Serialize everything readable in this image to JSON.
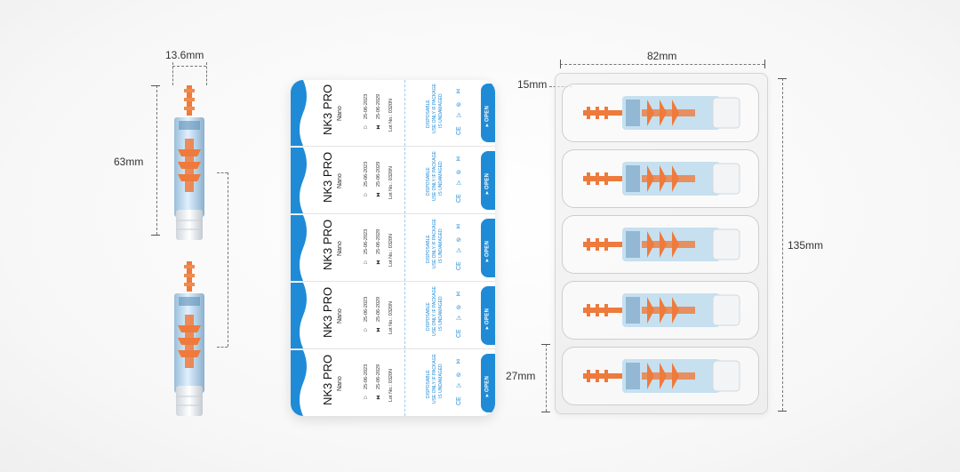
{
  "dimensions": {
    "cartridge_width": "13.6mm",
    "cartridge_length": "63mm",
    "pack_width": "82mm",
    "pack_edge": "15mm",
    "pack_height": "135mm",
    "cell_height": "27mm"
  },
  "label": {
    "brand": "NK3 PRO",
    "variant": "Nano",
    "mfg_date": "25-06-2023",
    "exp_date": "25-06-2029",
    "lot": "Lot No.: 0320N",
    "disposable_line1": "DISPOSABLE",
    "disposable_line2": "USE ONLY IF PACKAGE",
    "disposable_line3": "IS UNDAMAGED",
    "ce_mark": "CE",
    "open_tab": "▸ OPEN"
  },
  "colors": {
    "label_blue": "#1f8bd6",
    "cartridge_orange": "#ee7a3c",
    "cartridge_body": "#b9d9ee"
  }
}
